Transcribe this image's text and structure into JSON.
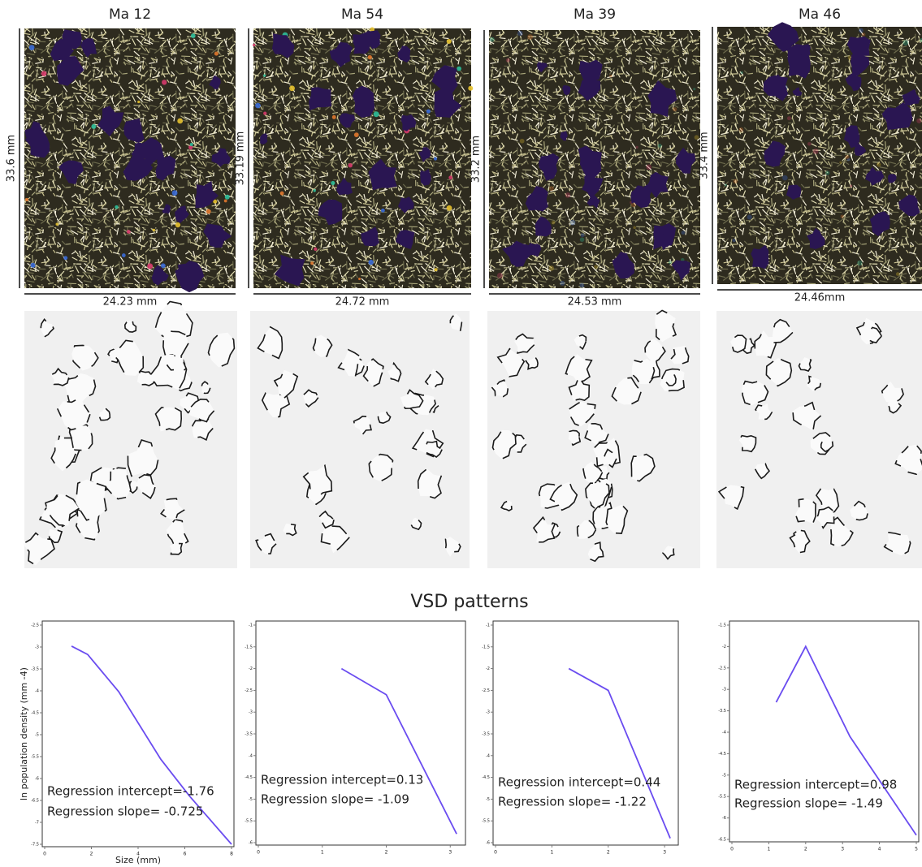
{
  "samples": [
    {
      "name": "Ma 12",
      "height": "33.6 mm",
      "width": "24.23 mm"
    },
    {
      "name": "Ma 54",
      "height": "33.19 mm",
      "width": "24.72 mm"
    },
    {
      "name": "Ma 39",
      "height": "33.2 mm",
      "width": "24.53 mm"
    },
    {
      "name": "Ma 46",
      "height": "33.4 mm",
      "width": "24.46mm"
    }
  ],
  "section_title": "VSD patterns",
  "chart_data": [
    {
      "type": "line",
      "x_label": "Size (mm)",
      "y_label": "ln population density (mm -4)",
      "x": [
        1.15,
        1.84,
        3.17,
        4.97,
        6.2,
        8
      ],
      "series": [
        {
          "color": "#6a4cf0",
          "values": [
            -2.98,
            -3.17,
            -4.02,
            -5.56,
            -6.4,
            -7.5
          ]
        }
      ],
      "xlim": [
        0,
        8
      ],
      "xticks": [
        0,
        2,
        4,
        6,
        8
      ],
      "ylim": [
        -7.5,
        -2.5
      ],
      "yticks": [
        -7.5,
        -7,
        -6.5,
        -6,
        -5.5,
        -5,
        -4.5,
        -4,
        -3.5,
        -3,
        -2.5
      ],
      "annotations": [
        "Regression intercept=-1.76",
        "Regression slope= -0.725"
      ]
    },
    {
      "type": "line",
      "x": [
        1.3,
        2,
        3.1
      ],
      "series": [
        {
          "color": "#6a4cf0",
          "values": [
            -2,
            -2.6,
            -5.8
          ]
        }
      ],
      "xlim": [
        0,
        3.2
      ],
      "xticks": [
        0,
        1,
        2,
        3
      ],
      "ylim": [
        -6,
        -1
      ],
      "yticks": [
        -6,
        -5.5,
        -5,
        -4.5,
        -4,
        -3.5,
        -3,
        -2.5,
        -2,
        -1.5,
        -1
      ],
      "annotations": [
        "Regression intercept=0.13",
        "Regression slope= -1.09"
      ]
    },
    {
      "type": "line",
      "x": [
        1.3,
        2,
        3.1
      ],
      "series": [
        {
          "color": "#6a4cf0",
          "values": [
            -2,
            -2.5,
            -5.9
          ]
        }
      ],
      "xlim": [
        0,
        3.2
      ],
      "xticks": [
        0,
        1,
        2,
        3
      ],
      "ylim": [
        -6,
        -1
      ],
      "yticks": [
        -6,
        -5.5,
        -5,
        -4.5,
        -4,
        -3.5,
        -3,
        -2.5,
        -2,
        -1.5,
        -1
      ],
      "annotations": [
        "Regression intercept=0.44",
        "Regression slope= -1.22"
      ]
    },
    {
      "type": "line",
      "x": [
        1.2,
        2,
        3.2,
        5
      ],
      "series": [
        {
          "color": "#6a4cf0",
          "values": [
            -3.3,
            -2,
            -4.1,
            -6.4
          ]
        }
      ],
      "xlim": [
        0,
        5
      ],
      "xticks": [
        0,
        1,
        2,
        3,
        4,
        5
      ],
      "ylim": [
        -6.5,
        -1.5
      ],
      "yticks": [
        -6.5,
        -6,
        -5.5,
        -5,
        -4.5,
        -4,
        -3.5,
        -3,
        -2.5,
        -2,
        -1.5
      ],
      "annotations": [
        "Regression intercept=0.98",
        "Regression slope= -1.49"
      ]
    }
  ]
}
